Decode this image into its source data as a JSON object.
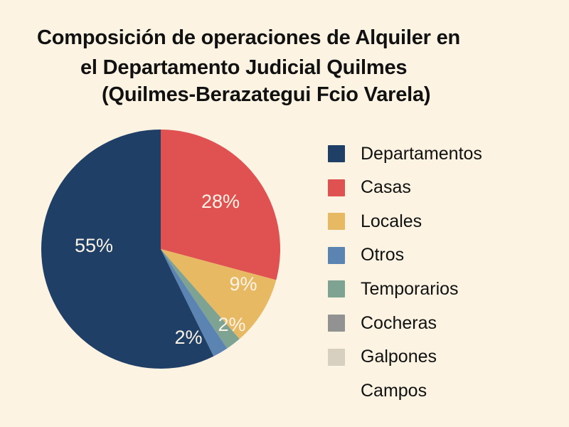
{
  "chart_data": {
    "type": "pie",
    "title_lines": [
      "Composición de operaciones de Alquiler en",
      "el Departamento Judicial Quilmes",
      "(Quilmes-Berazategui Fcio Varela)"
    ],
    "slices": [
      {
        "name": "Casas",
        "value": 28,
        "label": "28%",
        "color": "#e05252"
      },
      {
        "name": "Locales",
        "value": 9,
        "label": "9%",
        "color": "#e8b963"
      },
      {
        "name": "Temporarios",
        "value": 2,
        "label": "2%",
        "color": "#7fa392"
      },
      {
        "name": "Otros",
        "value": 2,
        "label": "2%",
        "color": "#5b84b3"
      },
      {
        "name": "Departamentos",
        "value": 55,
        "label": "55%",
        "color": "#1f3f66"
      }
    ],
    "legend": [
      {
        "name": "Departamentos",
        "color": "#1f3f66"
      },
      {
        "name": "Casas",
        "color": "#e05252"
      },
      {
        "name": "Locales",
        "color": "#e8b963"
      },
      {
        "name": "Otros",
        "color": "#5b84b3"
      },
      {
        "name": "Temporarios",
        "color": "#7fa392"
      },
      {
        "name": "Cocheras",
        "color": "#929292"
      },
      {
        "name": "Galpones",
        "color": "#d7cfc0"
      },
      {
        "name": "Campos",
        "color": null
      }
    ],
    "legend_position": "right"
  }
}
